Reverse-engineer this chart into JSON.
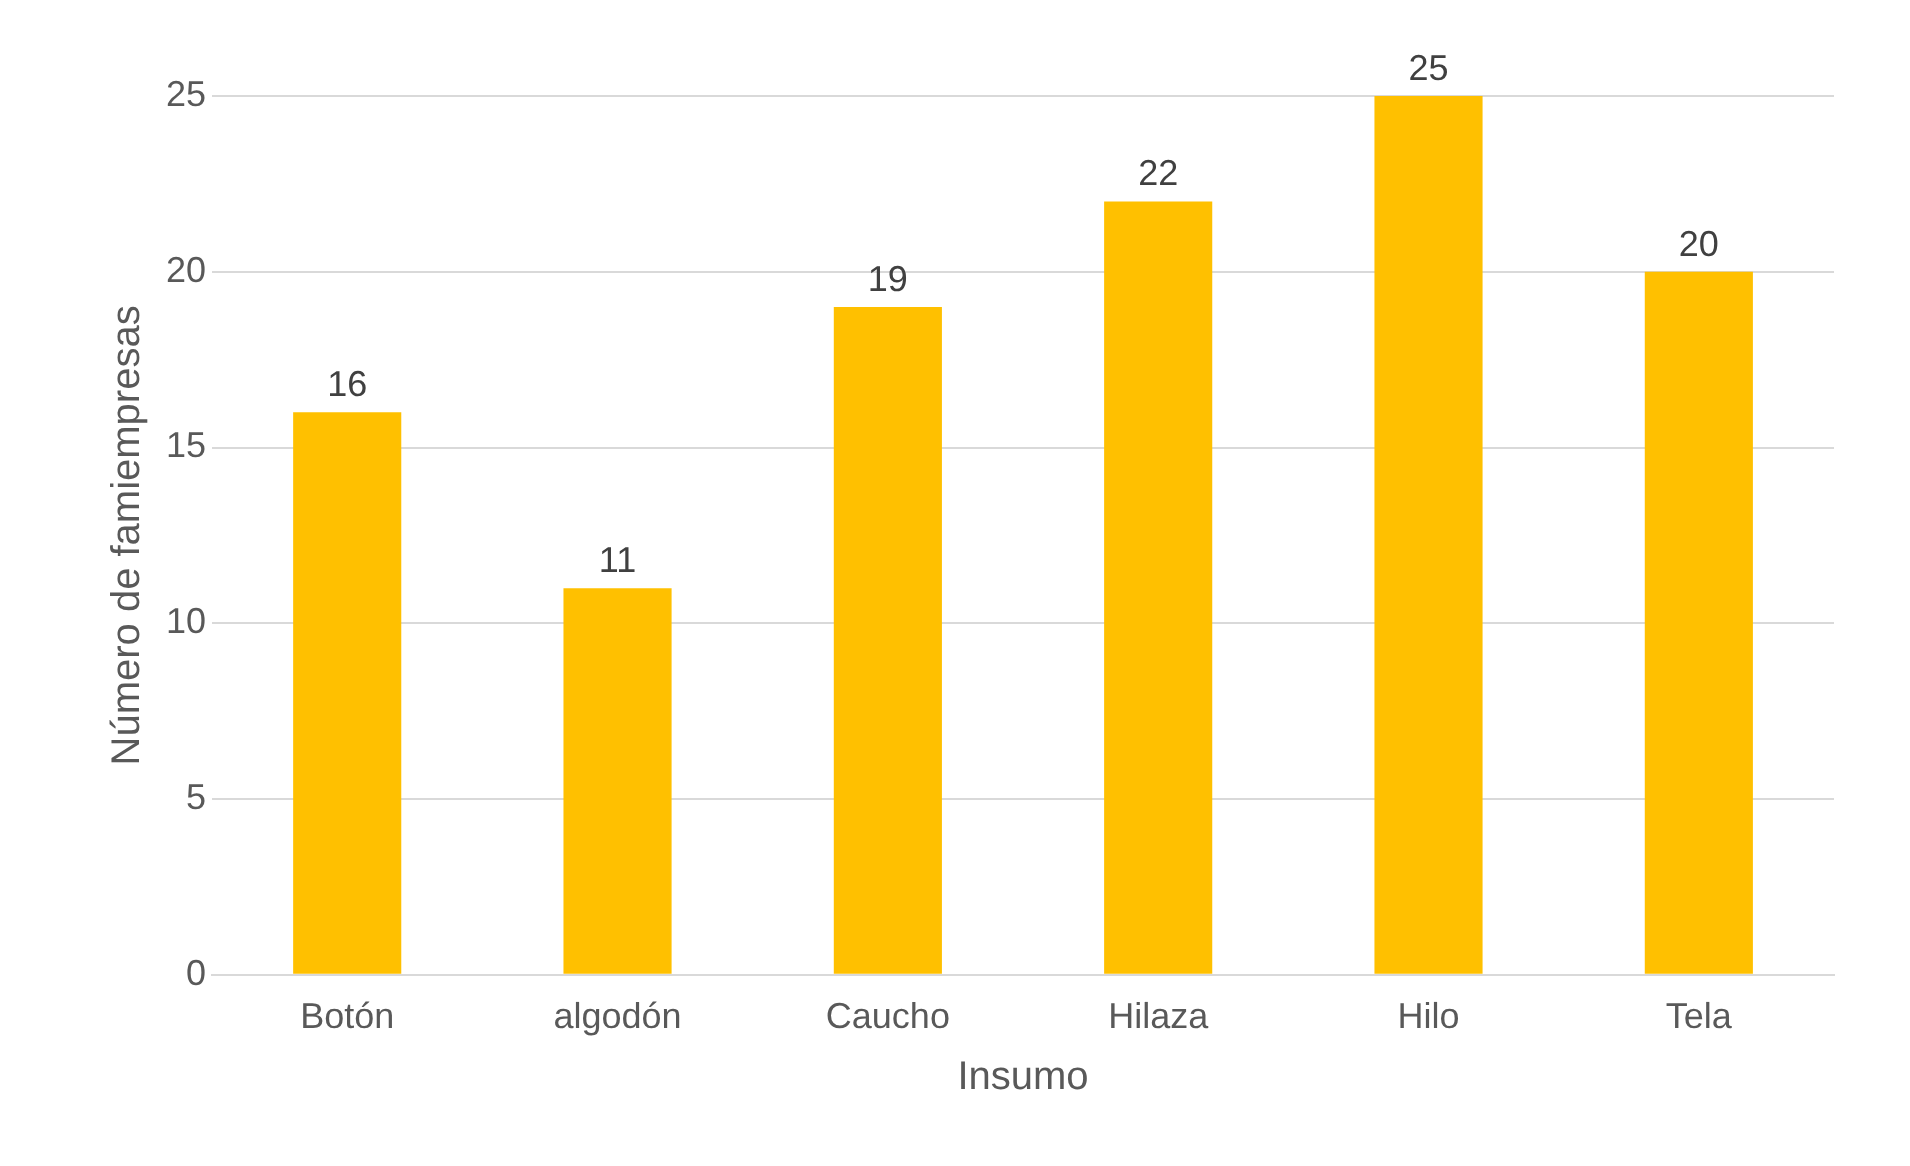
{
  "chart_data": {
    "type": "bar",
    "xlabel": "Insumo",
    "ylabel": "Número de famiempresas",
    "categories": [
      "Botón",
      "algodón",
      "Caucho",
      "Hilaza",
      "Hilo",
      "Tela"
    ],
    "values": [
      16,
      11,
      19,
      22,
      25,
      20
    ],
    "color": "#ffc000",
    "ylim": [
      0,
      25
    ],
    "yticks": [
      0,
      5,
      10,
      15,
      20,
      25
    ],
    "grid": "y",
    "data_labels": true,
    "legend": false
  }
}
